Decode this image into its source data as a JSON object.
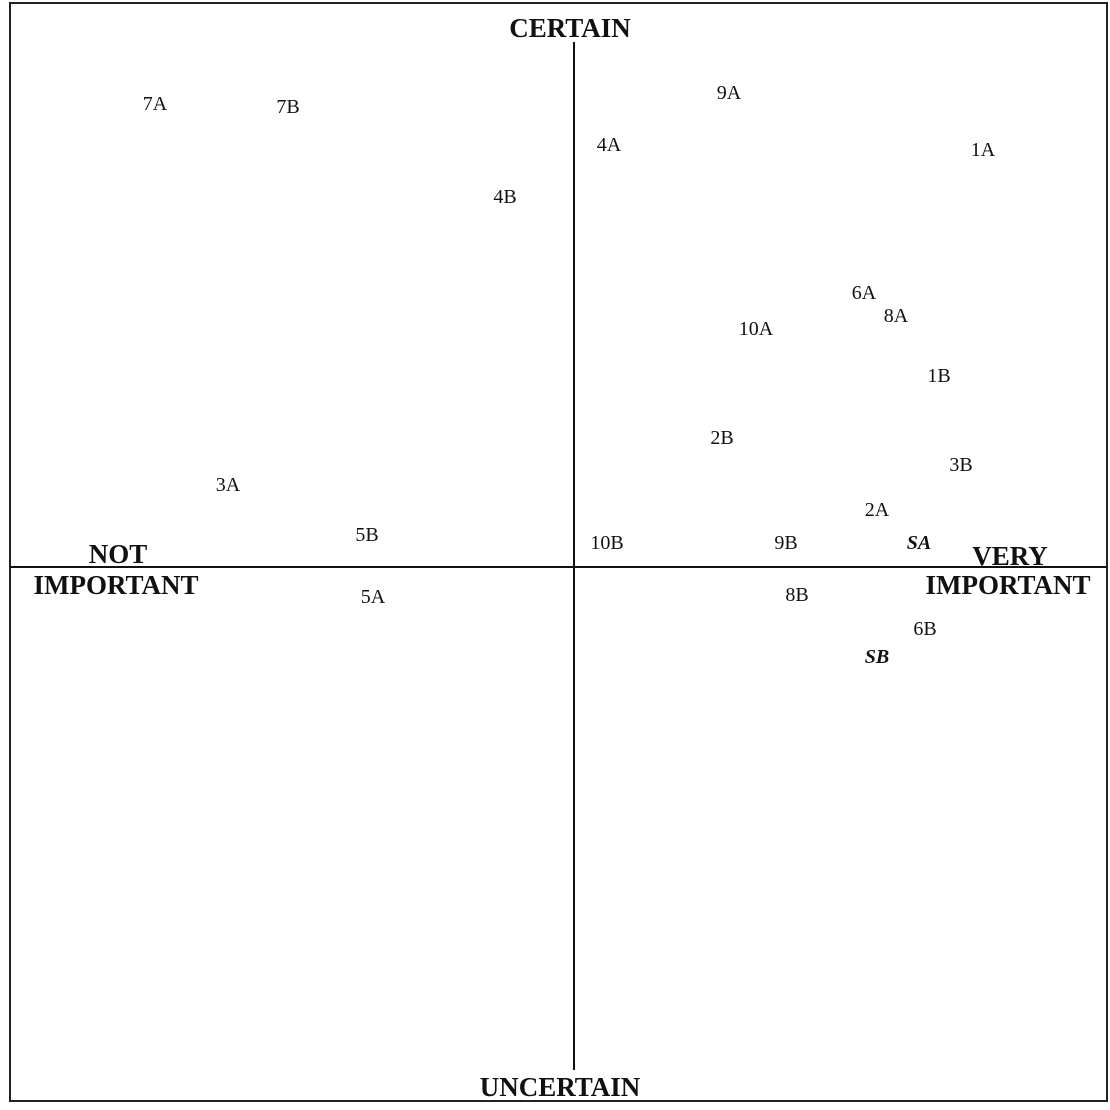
{
  "axes": {
    "top": "CERTAIN",
    "bottom": "UNCERTAIN",
    "left_line1": "NOT",
    "left_line2": "IMPORTANT",
    "right_line1": "VERY",
    "right_line2": "IMPORTANT"
  },
  "points": [
    {
      "id": "p-7a",
      "label": "7A",
      "italic": false
    },
    {
      "id": "p-7b",
      "label": "7B",
      "italic": false
    },
    {
      "id": "p-9a",
      "label": "9A",
      "italic": false
    },
    {
      "id": "p-4a",
      "label": "4A",
      "italic": false
    },
    {
      "id": "p-1a",
      "label": "1A",
      "italic": false
    },
    {
      "id": "p-4b",
      "label": "4B",
      "italic": false
    },
    {
      "id": "p-6a",
      "label": "6A",
      "italic": false
    },
    {
      "id": "p-8a",
      "label": "8A",
      "italic": false
    },
    {
      "id": "p-10a",
      "label": "10A",
      "italic": false
    },
    {
      "id": "p-1b",
      "label": "1B",
      "italic": false
    },
    {
      "id": "p-2b",
      "label": "2B",
      "italic": false
    },
    {
      "id": "p-3b",
      "label": "3B",
      "italic": false
    },
    {
      "id": "p-3a",
      "label": "3A",
      "italic": false
    },
    {
      "id": "p-2a",
      "label": "2A",
      "italic": false
    },
    {
      "id": "p-5b",
      "label": "5B",
      "italic": false
    },
    {
      "id": "p-10b",
      "label": "10B",
      "italic": false
    },
    {
      "id": "p-9b",
      "label": "9B",
      "italic": false
    },
    {
      "id": "p-sa",
      "label": "SA",
      "italic": true
    },
    {
      "id": "p-5a",
      "label": "5A",
      "italic": false
    },
    {
      "id": "p-8b",
      "label": "8B",
      "italic": false
    },
    {
      "id": "p-6b",
      "label": "6B",
      "italic": false
    },
    {
      "id": "p-sb",
      "label": "SB",
      "italic": true
    }
  ]
}
